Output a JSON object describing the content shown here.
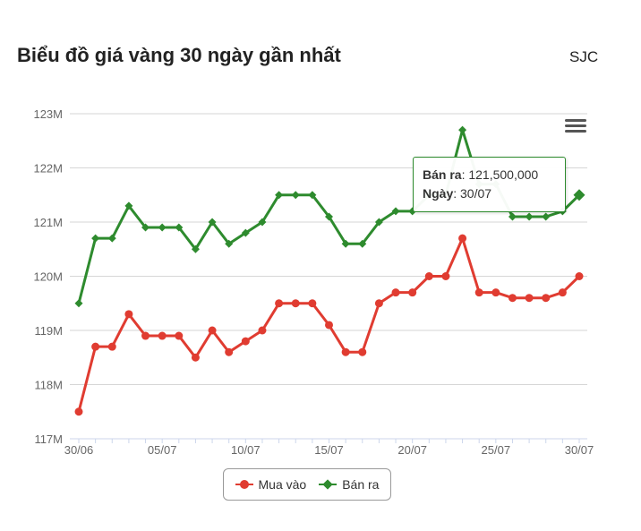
{
  "header": {
    "title": "Biểu đồ giá vàng 30 ngày gần nhất",
    "brand": "SJC"
  },
  "menu": {
    "icon": "hamburger-menu-icon"
  },
  "tooltip": {
    "series_label": "Bán ra",
    "value": "121,500,000",
    "date_label": "Ngày",
    "date": "30/07"
  },
  "legend": {
    "items": [
      {
        "label": "Mua vào",
        "color": "#e03c31"
      },
      {
        "label": "Bán ra",
        "color": "#2e8b2e"
      }
    ]
  },
  "chart_data": {
    "type": "line",
    "x": [
      "30/06",
      "01/07",
      "02/07",
      "03/07",
      "04/07",
      "05/07",
      "06/07",
      "07/07",
      "08/07",
      "09/07",
      "10/07",
      "11/07",
      "12/07",
      "13/07",
      "14/07",
      "15/07",
      "16/07",
      "17/07",
      "18/07",
      "19/07",
      "20/07",
      "21/07",
      "22/07",
      "23/07",
      "24/07",
      "25/07",
      "26/07",
      "27/07",
      "28/07",
      "29/07",
      "30/07"
    ],
    "x_ticks": [
      "30/06",
      "05/07",
      "10/07",
      "15/07",
      "20/07",
      "25/07",
      "30/07"
    ],
    "y_ticks": [
      "117M",
      "118M",
      "119M",
      "120M",
      "121M",
      "122M",
      "123M"
    ],
    "ylim": [
      117,
      123
    ],
    "y_unit": "M",
    "grid": true,
    "legend_position": "bottom-center",
    "series": [
      {
        "name": "Mua vào",
        "color": "#e03c31",
        "marker": "circle",
        "values": [
          117.5,
          118.7,
          118.7,
          119.3,
          118.9,
          118.9,
          118.9,
          118.5,
          119.0,
          118.6,
          118.8,
          119.0,
          119.5,
          119.5,
          119.5,
          119.1,
          118.6,
          118.6,
          119.5,
          119.7,
          119.7,
          120.0,
          120.0,
          120.7,
          119.7,
          119.7,
          119.6,
          119.6,
          119.6,
          119.7,
          120.0
        ]
      },
      {
        "name": "Bán ra",
        "color": "#2e8b2e",
        "marker": "diamond",
        "values": [
          119.5,
          120.7,
          120.7,
          121.3,
          120.9,
          120.9,
          120.9,
          120.5,
          121.0,
          120.6,
          120.8,
          121.0,
          121.5,
          121.5,
          121.5,
          121.1,
          120.6,
          120.6,
          121.0,
          121.2,
          121.2,
          121.5,
          121.5,
          122.7,
          121.7,
          121.7,
          121.1,
          121.1,
          121.1,
          121.2,
          121.5
        ]
      }
    ]
  }
}
